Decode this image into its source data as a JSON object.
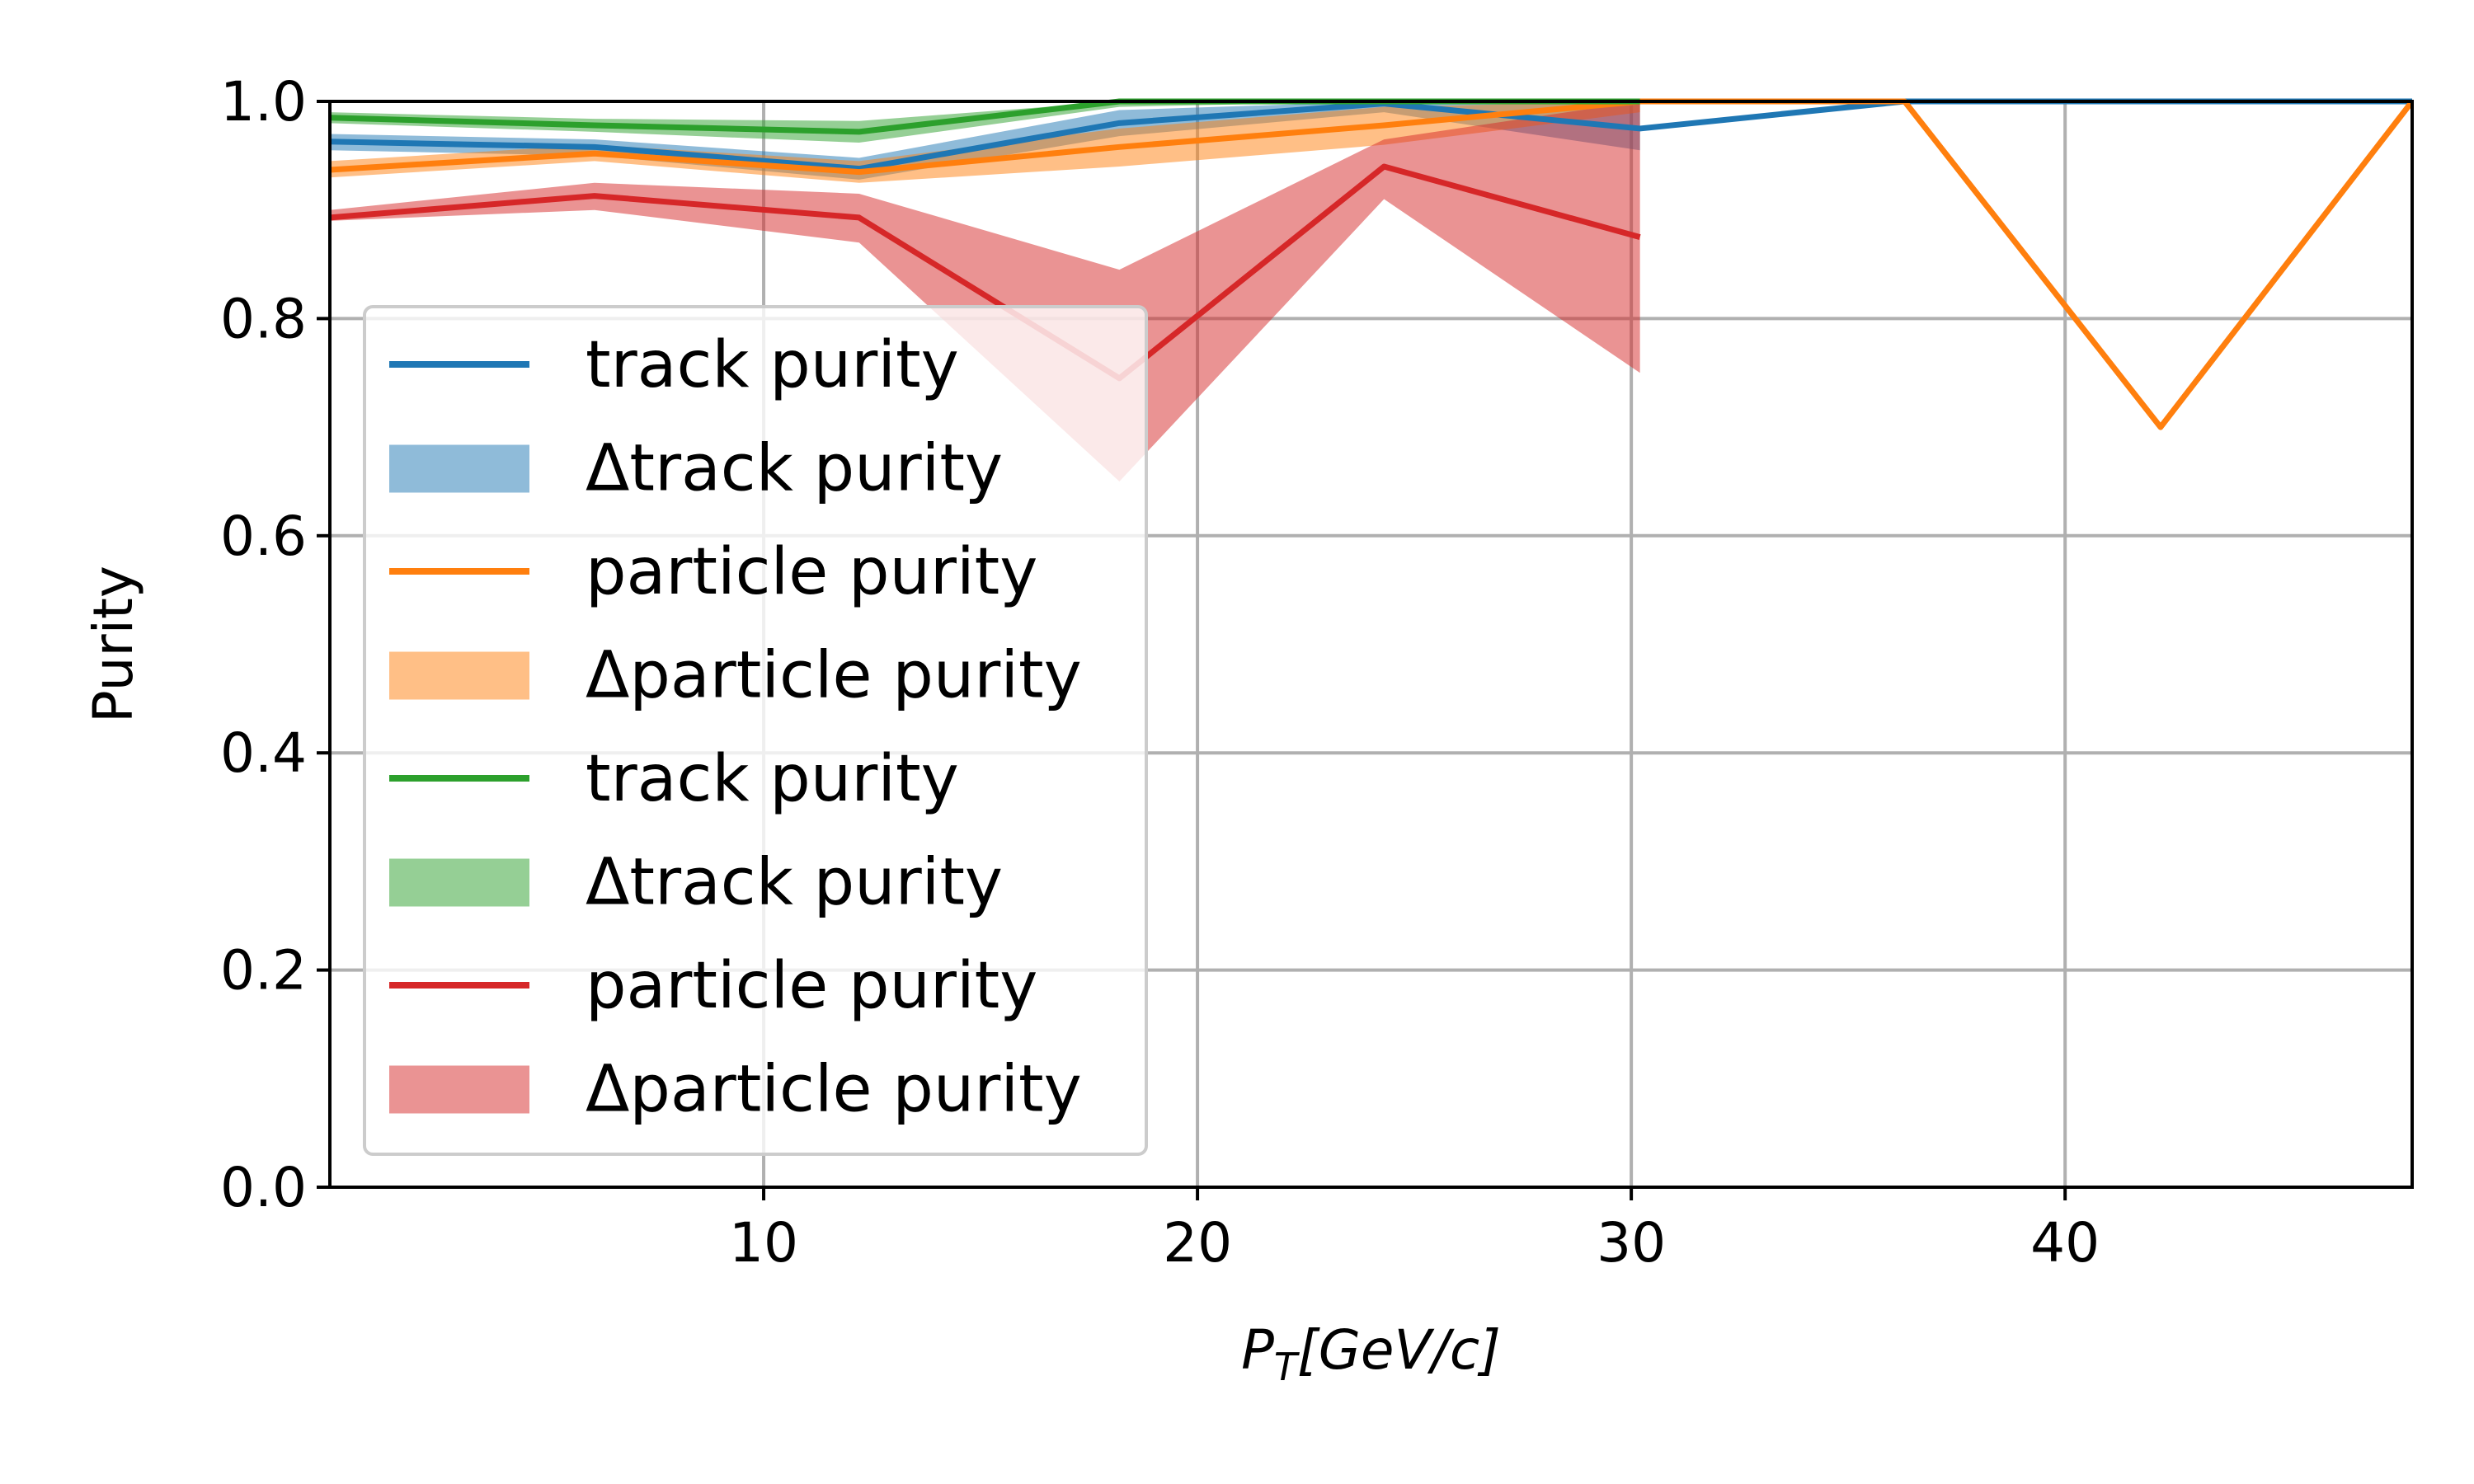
{
  "chart_data": {
    "type": "line",
    "title": "",
    "xlabel": "P_T[GeV/c]",
    "xlabel_parts": {
      "base": "P",
      "sub": "T",
      "rest": "[GeV/c]"
    },
    "ylabel": "Purity",
    "xlim": [
      0,
      48
    ],
    "ylim": [
      0.0,
      1.0
    ],
    "xticks": [
      10,
      20,
      30,
      40
    ],
    "xtick_labels": [
      "10",
      "20",
      "30",
      "40"
    ],
    "yticks": [
      0.0,
      0.2,
      0.4,
      0.6,
      0.8,
      1.0
    ],
    "ytick_labels": [
      "0.0",
      "0.2",
      "0.4",
      "0.6",
      "0.8",
      "1.0"
    ],
    "grid": true,
    "legend_position": "lower-left",
    "series": [
      {
        "name": "track purity",
        "band_name": "Δtrack purity",
        "color": "#1f77b4",
        "x": [
          0,
          6.1,
          12.2,
          18.2,
          24.3,
          30.2,
          36.3,
          42.2,
          48.0
        ],
        "y": [
          0.963,
          0.958,
          0.938,
          0.98,
          0.998,
          0.975,
          1.0,
          1.0,
          1.0
        ],
        "band_x": [
          0,
          6.1,
          12.2,
          18.2,
          24.3,
          30.2
        ],
        "band_lower": [
          0.955,
          0.95,
          0.928,
          0.968,
          0.99,
          0.955
        ],
        "band_upper": [
          0.97,
          0.965,
          0.948,
          0.992,
          1.0,
          1.0
        ]
      },
      {
        "name": "particle purity",
        "band_name": "Δparticle purity",
        "color": "#ff7f0e",
        "x": [
          0,
          6.1,
          12.2,
          18.2,
          24.3,
          30.2,
          36.3,
          42.2,
          48.0
        ],
        "y": [
          0.937,
          0.952,
          0.935,
          0.958,
          0.978,
          1.0,
          1.0,
          0.7,
          1.0
        ],
        "band_x": [
          0,
          6.1,
          12.2,
          18.2,
          24.3,
          30.2
        ],
        "band_lower": [
          0.93,
          0.945,
          0.925,
          0.94,
          0.96,
          0.99
        ],
        "band_upper": [
          0.945,
          0.96,
          0.945,
          0.975,
          0.995,
          1.0
        ]
      },
      {
        "name": "track purity",
        "band_name": "Δtrack purity",
        "color": "#2ca02c",
        "x": [
          0,
          6.1,
          12.2,
          18.2,
          24.3,
          30.2
        ],
        "y": [
          0.985,
          0.978,
          0.972,
          1.0,
          1.0,
          1.0
        ],
        "band_x": [
          0,
          6.1,
          12.2,
          18.2,
          24.3,
          30.2
        ],
        "band_lower": [
          0.98,
          0.972,
          0.962,
          0.995,
          1.0,
          1.0
        ],
        "band_upper": [
          0.99,
          0.984,
          0.982,
          1.0,
          1.0,
          1.0
        ]
      },
      {
        "name": "particle purity",
        "band_name": "Δparticle purity",
        "color": "#d62728",
        "x": [
          0,
          6.1,
          12.2,
          18.2,
          24.3,
          30.2
        ],
        "y": [
          0.893,
          0.913,
          0.893,
          0.745,
          0.94,
          0.875
        ],
        "band_x": [
          0,
          6.1,
          12.2,
          18.2,
          24.3,
          30.2
        ],
        "band_lower": [
          0.89,
          0.9,
          0.87,
          0.65,
          0.91,
          0.75
        ],
        "band_upper": [
          0.9,
          0.925,
          0.915,
          0.845,
          0.965,
          1.0
        ]
      }
    ]
  },
  "colors": {
    "grid": "#b0b0b0",
    "axes": "#000000",
    "legend_border": "#cccccc"
  }
}
